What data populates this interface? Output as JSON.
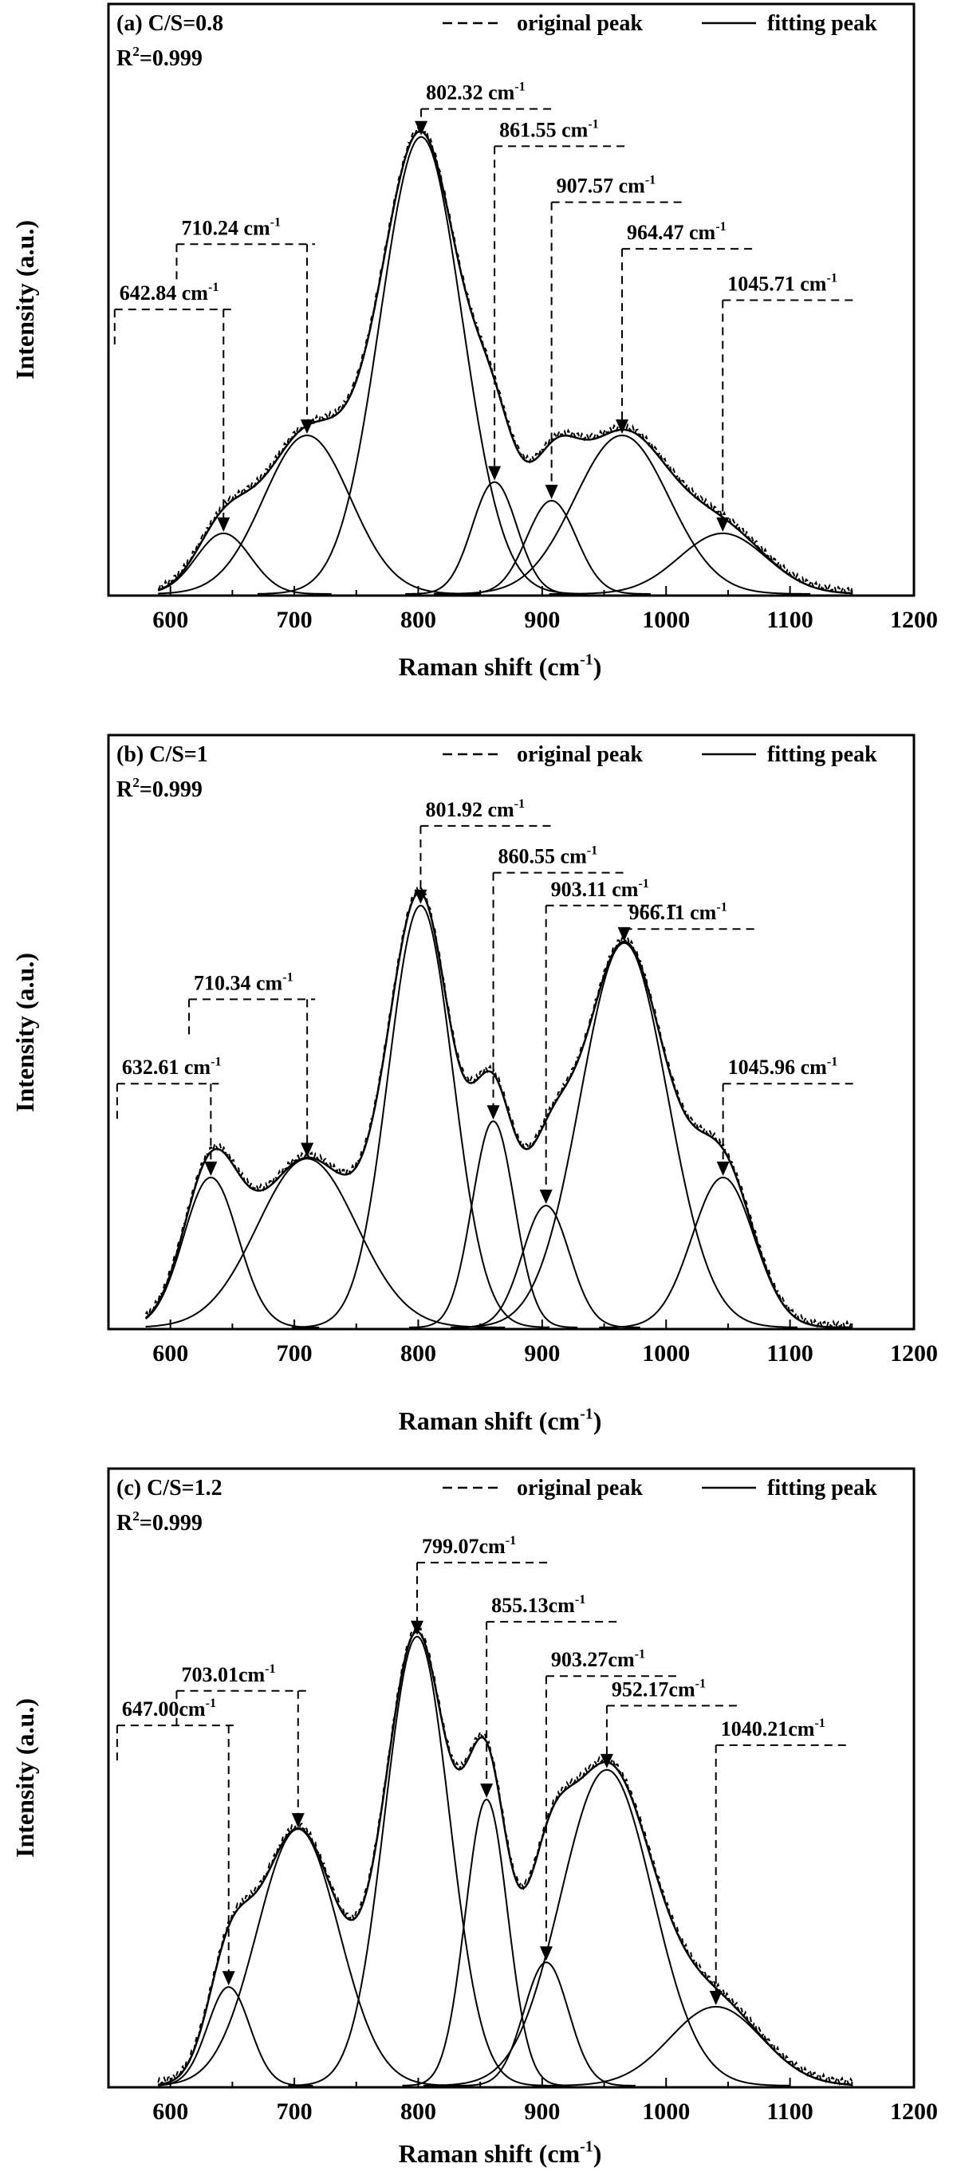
{
  "chart_data": [
    {
      "type": "line",
      "panel_label": "(a) C/S=0.8",
      "r2_main": "R",
      "r2_sup": "2",
      "r2_value": "=0.999",
      "xlabel": "Raman shift (cm",
      "xlabel_sup": "-1",
      "xlabel_close": ")",
      "ylabel": "Intensity (a.u.)",
      "xlim": [
        550,
        1200
      ],
      "ylim": [
        0,
        1
      ],
      "xticks": [
        600,
        700,
        800,
        900,
        1000,
        1100,
        1200
      ],
      "legend": {
        "original": "original peak",
        "fitting": "fitting peak",
        "position": "top-right"
      },
      "curve_range": [
        590,
        1150
      ],
      "original_noise": 1,
      "peaks": [
        {
          "center": 642.84,
          "height": 0.13,
          "width": 22,
          "label": "642.84 cm",
          "sup": "-1",
          "boxLeft": 555,
          "level": 0.61
        },
        {
          "center": 710.24,
          "height": 0.34,
          "width": 35,
          "label": "710.24 cm",
          "sup": "-1",
          "boxLeft": 605,
          "level": 0.75
        },
        {
          "center": 802.32,
          "height": 0.98,
          "width": 33,
          "label": "802.32 cm",
          "sup": "-1",
          "boxLeft": 802.32,
          "level": 1.04
        },
        {
          "center": 861.55,
          "height": 0.24,
          "width": 18,
          "label": "861.55 cm",
          "sup": "-1",
          "boxLeft": 861.55,
          "level": 0.96
        },
        {
          "center": 907.57,
          "height": 0.2,
          "width": 20,
          "label": "907.57 cm",
          "sup": "-1",
          "boxLeft": 907.57,
          "level": 0.84
        },
        {
          "center": 964.47,
          "height": 0.34,
          "width": 38,
          "label": "964.47 cm",
          "sup": "-1",
          "boxLeft": 964.47,
          "level": 0.74
        },
        {
          "center": 1045.71,
          "height": 0.13,
          "width": 35,
          "label": "1045.71 cm",
          "sup": "-1",
          "boxLeft": 1045.71,
          "level": 0.63
        }
      ]
    },
    {
      "type": "line",
      "panel_label": "(b) C/S=1",
      "r2_main": "R",
      "r2_sup": "2",
      "r2_value": "=0.999",
      "xlabel": "Raman shift (cm",
      "xlabel_sup": "-1",
      "xlabel_close": ")",
      "ylabel": "Intensity (a.u.)",
      "xlim": [
        550,
        1200
      ],
      "ylim": [
        0,
        1
      ],
      "xticks": [
        600,
        700,
        800,
        900,
        1000,
        1100,
        1200
      ],
      "legend": {
        "original": "original peak",
        "fitting": "fitting peak",
        "position": "top-right"
      },
      "curve_range": [
        580,
        1150
      ],
      "original_noise": 1,
      "peaks": [
        {
          "center": 632.61,
          "height": 0.32,
          "width": 22,
          "label": "632.61 cm",
          "sup": "-1",
          "boxLeft": 557,
          "level": 0.52
        },
        {
          "center": 710.34,
          "height": 0.36,
          "width": 40,
          "label": "710.34 cm",
          "sup": "-1",
          "boxLeft": 615,
          "level": 0.7
        },
        {
          "center": 801.92,
          "height": 0.9,
          "width": 26,
          "label": "801.92 cm",
          "sup": "-1",
          "boxLeft": 801.92,
          "level": 1.07
        },
        {
          "center": 860.55,
          "height": 0.44,
          "width": 17,
          "label": "860.55 cm",
          "sup": "-1",
          "boxLeft": 860.55,
          "level": 0.97
        },
        {
          "center": 903.11,
          "height": 0.26,
          "width": 19,
          "label": "903.11 cm",
          "sup": "-1",
          "boxLeft": 903.11,
          "level": 0.9
        },
        {
          "center": 966.11,
          "height": 0.82,
          "width": 35,
          "label": "966.11 cm",
          "sup": "-1",
          "boxLeft": 966.11,
          "level": 0.85
        },
        {
          "center": 1045.96,
          "height": 0.32,
          "width": 25,
          "label": "1045.96 cm",
          "sup": "-1",
          "boxLeft": 1045.96,
          "level": 0.52
        }
      ]
    },
    {
      "type": "line",
      "panel_label": "(c) C/S=1.2",
      "r2_main": "R",
      "r2_sup": "2",
      "r2_value": "=0.999",
      "xlabel": "Raman shift (cm",
      "xlabel_sup": "-1",
      "xlabel_close": ")",
      "ylabel": "Intensity (a.u.)",
      "xlim": [
        550,
        1200
      ],
      "ylim": [
        0,
        1
      ],
      "xticks": [
        600,
        700,
        800,
        900,
        1000,
        1100,
        1200
      ],
      "legend": {
        "original": "original peak",
        "fitting": "fitting peak",
        "position": "top-right"
      },
      "curve_range": [
        590,
        1150
      ],
      "original_noise": 1,
      "peaks": [
        {
          "center": 647.0,
          "height": 0.2,
          "width": 17,
          "label": "647.00cm",
          "sup": "-1",
          "boxLeft": 557,
          "level": 0.73
        },
        {
          "center": 703.01,
          "height": 0.52,
          "width": 33,
          "label": "703.01cm",
          "sup": "-1",
          "boxLeft": 605,
          "level": 0.8
        },
        {
          "center": 799.07,
          "height": 0.91,
          "width": 26,
          "label": "799.07cm",
          "sup": "-1",
          "boxLeft": 799.07,
          "level": 1.06
        },
        {
          "center": 855.13,
          "height": 0.58,
          "width": 17,
          "label": "855.13cm",
          "sup": "-1",
          "boxLeft": 855.13,
          "level": 0.94
        },
        {
          "center": 903.27,
          "height": 0.25,
          "width": 18,
          "label": "903.27cm",
          "sup": "-1",
          "boxLeft": 903.27,
          "level": 0.83
        },
        {
          "center": 952.17,
          "height": 0.64,
          "width": 37,
          "label": "952.17cm",
          "sup": "-1",
          "boxLeft": 952.17,
          "level": 0.77
        },
        {
          "center": 1040.21,
          "height": 0.16,
          "width": 37,
          "label": "1040.21cm",
          "sup": "-1",
          "boxLeft": 1040.21,
          "level": 0.69
        }
      ]
    }
  ]
}
